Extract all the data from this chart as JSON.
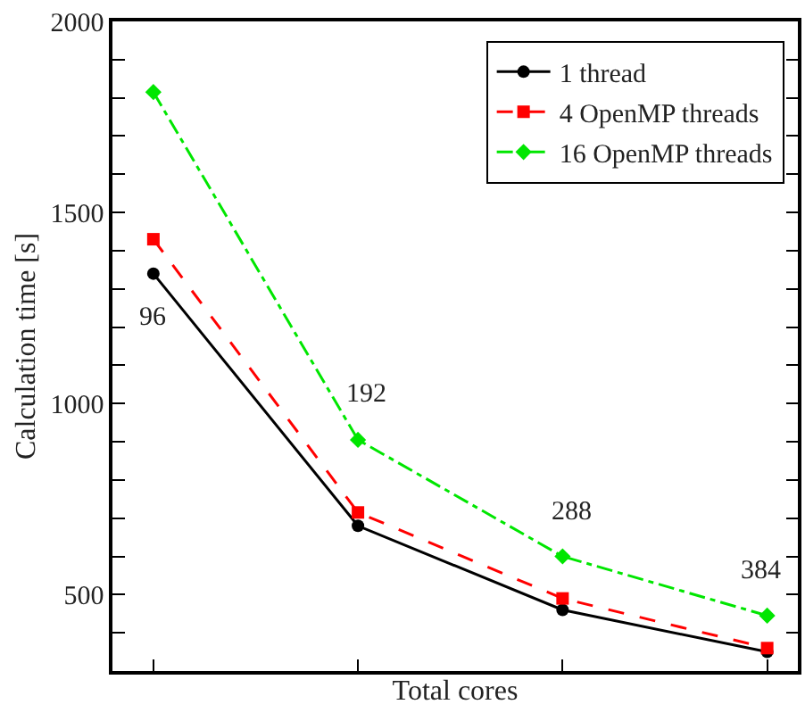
{
  "chart_data": {
    "type": "line",
    "xlabel": "Total cores",
    "ylabel": "Calculation time [s]",
    "categories": [
      null,
      null,
      null,
      null
    ],
    "ylim": [
      300,
      2000
    ],
    "yticks": [
      {
        "value": 400,
        "label": null
      },
      500,
      {
        "value": 600,
        "label": null
      },
      {
        "value": 700,
        "label": null
      },
      {
        "value": 800,
        "label": null
      },
      {
        "value": 900,
        "label": null
      },
      1000,
      {
        "value": 1100,
        "label": null
      },
      {
        "value": 1200,
        "label": null
      },
      {
        "value": 1300,
        "label": null
      },
      {
        "value": 1400,
        "label": null
      },
      1500,
      {
        "value": 1600,
        "label": null
      },
      {
        "value": 1700,
        "label": null
      },
      {
        "value": 1800,
        "label": null
      },
      {
        "value": 1900,
        "label": null
      },
      2000
    ],
    "tick_labels": "y",
    "legend": "top right",
    "series": [
      {
        "name": "1 thread",
        "color": "#000000",
        "marker": "circle",
        "line_style": "solid",
        "values": [
          1340,
          680,
          460,
          350
        ]
      },
      {
        "name": "4 OpenMP threads",
        "color": "#ff0000",
        "marker": "square",
        "line_style": "dashed",
        "values": [
          1430,
          715,
          490,
          360
        ]
      },
      {
        "name": "16 OpenMP threads",
        "color": "#00e600",
        "marker": "diamond",
        "line_style": "dashdot",
        "values": [
          1815,
          905,
          600,
          445
        ]
      }
    ],
    "annotations": [
      "96",
      "192",
      "288",
      "384"
    ]
  }
}
